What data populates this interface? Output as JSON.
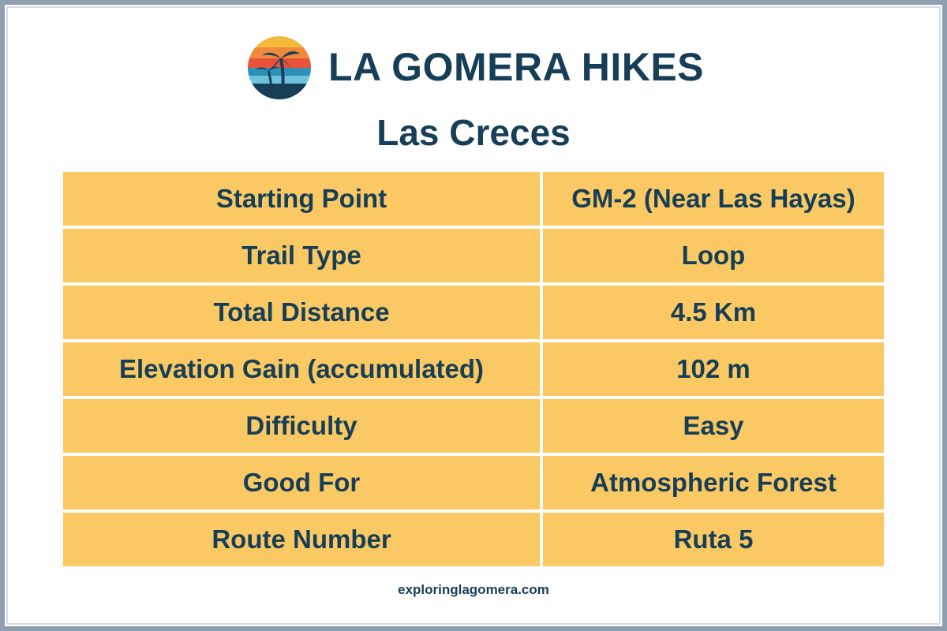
{
  "header": {
    "title": "LA GOMERA HIKES",
    "subtitle": "Las Creces"
  },
  "table": {
    "rows": [
      [
        "Starting Point",
        "GM-2 (Near Las Hayas)"
      ],
      [
        "Trail Type",
        "Loop"
      ],
      [
        "Total Distance",
        "4.5 Km"
      ],
      [
        "Elevation Gain (accumulated)",
        "102 m"
      ],
      [
        "Difficulty",
        "Easy"
      ],
      [
        "Good For",
        "Atmospheric Forest"
      ],
      [
        "Route Number",
        "Ruta 5"
      ]
    ]
  },
  "footer": {
    "url": "exploringlagomera.com"
  }
}
